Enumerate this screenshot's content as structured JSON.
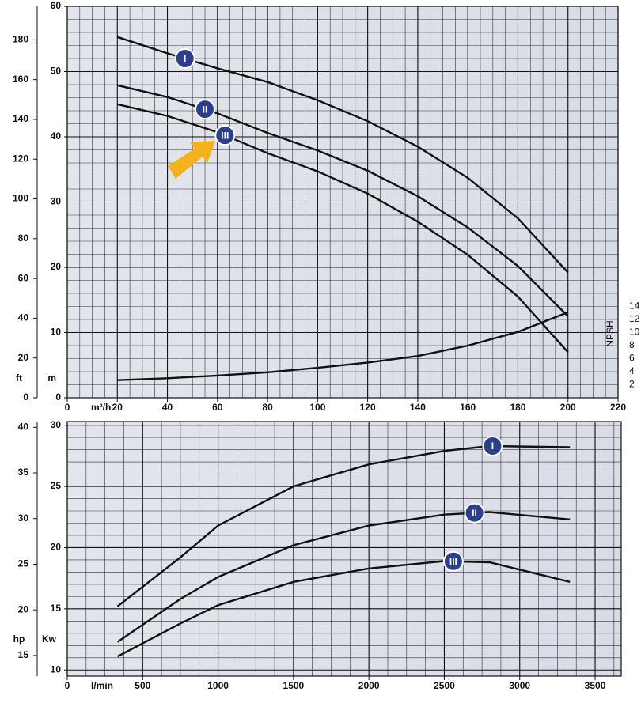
{
  "chart_data": [
    {
      "type": "line",
      "x_label": "m³/h",
      "y_label": "m",
      "x": [
        20,
        40,
        60,
        80,
        100,
        120,
        140,
        160,
        180,
        200
      ],
      "series": [
        {
          "name": "I",
          "color": "#111111",
          "values": [
            55.3,
            52.8,
            50.5,
            48.4,
            45.6,
            42.4,
            38.5,
            33.7,
            27.5,
            19.2
          ]
        },
        {
          "name": "II",
          "color": "#111111",
          "values": [
            47.9,
            46.1,
            43.6,
            40.6,
            37.9,
            34.8,
            30.9,
            26.1,
            20.2,
            12.5
          ]
        },
        {
          "name": "III",
          "color": "#111111",
          "values": [
            45.0,
            43.2,
            40.7,
            37.5,
            34.7,
            31.3,
            27.0,
            21.9,
            15.5,
            7.0
          ]
        },
        {
          "name": "NPSH",
          "color": "#111111",
          "axis": "y2",
          "values": [
            2.7,
            3.0,
            3.4,
            3.9,
            4.6,
            5.4,
            6.4,
            8.0,
            10.1,
            13.1
          ]
        }
      ],
      "xlim": [
        0,
        220
      ],
      "xticks": [
        0,
        20,
        40,
        60,
        80,
        100,
        120,
        140,
        160,
        180,
        200,
        220
      ],
      "ylim": [
        0,
        60
      ],
      "yticks": [
        0,
        10,
        20,
        30,
        40,
        50,
        60
      ],
      "y2lim": [
        0,
        60
      ],
      "y2ticks": [
        2,
        4,
        6,
        8,
        10,
        12,
        14
      ],
      "ft_axis": {
        "label": "ft",
        "lim": [
          0,
          196.85
        ],
        "ticks": [
          0,
          20,
          40,
          60,
          80,
          100,
          120,
          140,
          160,
          180
        ]
      },
      "grid": true
    },
    {
      "type": "line",
      "x_label": "l/min",
      "y_label": "Kw",
      "x": [
        333,
        750,
        1000,
        1500,
        2000,
        2500,
        2800,
        3333
      ],
      "series": [
        {
          "name": "I",
          "color": "#111111",
          "values": [
            15.2,
            19.2,
            21.8,
            25.0,
            26.8,
            27.9,
            28.3,
            28.2
          ]
        },
        {
          "name": "II",
          "color": "#111111",
          "values": [
            12.3,
            15.8,
            17.6,
            20.2,
            21.8,
            22.7,
            22.9,
            22.3
          ]
        },
        {
          "name": "III",
          "color": "#111111",
          "values": [
            11.1,
            13.8,
            15.3,
            17.2,
            18.3,
            18.9,
            18.8,
            17.2
          ]
        }
      ],
      "xlim": [
        0,
        3673
      ],
      "xticks": [
        0,
        500,
        1000,
        1500,
        2000,
        2500,
        3000,
        3500
      ],
      "ylim": [
        9.5,
        30.3
      ],
      "yticks": [
        10,
        15,
        20,
        25,
        30
      ],
      "hp_axis": {
        "label": "hp",
        "lim": [
          12.74,
          40.63
        ],
        "ticks": [
          15,
          20,
          25,
          30,
          35,
          40
        ]
      },
      "grid": true
    }
  ]
}
